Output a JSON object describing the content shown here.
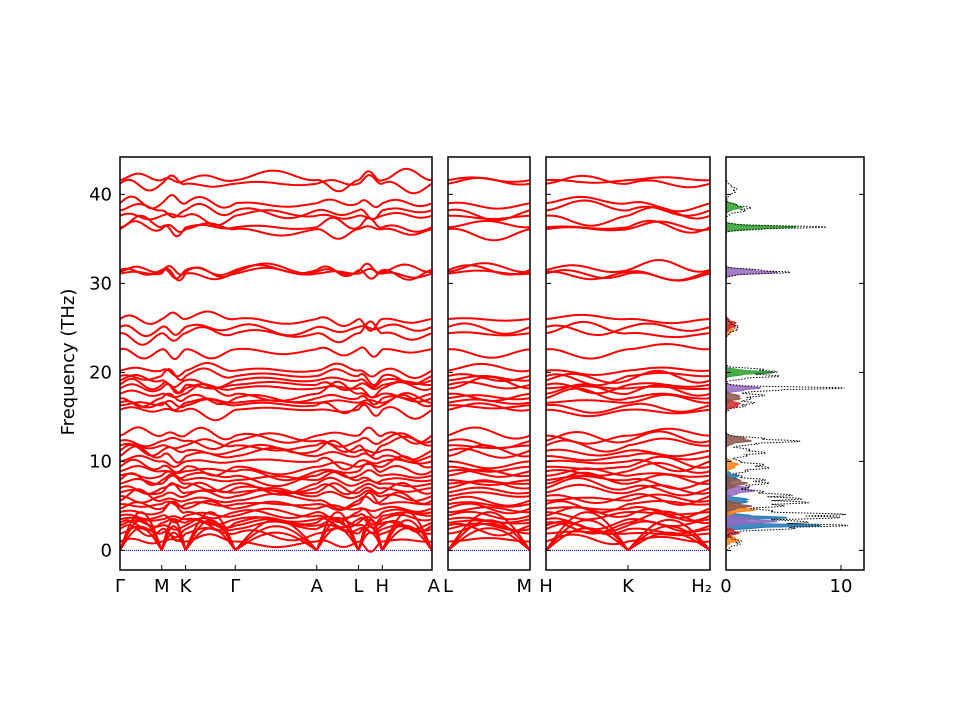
{
  "chart_data": {
    "type": "line",
    "title": "",
    "ylabel": "Frequency (THz)",
    "ylim": [
      -2.2,
      44.2
    ],
    "yticks": [
      0,
      10,
      20,
      30,
      40
    ],
    "line_color": "#ff0000",
    "zero_line_color": "#0000ff",
    "panels": [
      {
        "name": "path-1",
        "xticks": [
          "Γ",
          "M",
          "K",
          "Γ",
          "A",
          "L",
          "H",
          "A"
        ],
        "segments": [
          {
            "from": "Γ",
            "to": "M",
            "len": 0.42
          },
          {
            "from": "M",
            "to": "K",
            "len": 0.24
          },
          {
            "from": "K",
            "to": "Γ",
            "len": 0.5
          },
          {
            "from": "Γ",
            "to": "A",
            "len": 0.82
          },
          {
            "from": "A",
            "to": "L",
            "len": 0.42
          },
          {
            "from": "L",
            "to": "H",
            "len": 0.24
          },
          {
            "from": "H",
            "to": "A",
            "len": 0.5
          }
        ]
      },
      {
        "name": "path-2",
        "xticks": [
          "L",
          "M"
        ],
        "segments": [
          {
            "from": "L",
            "to": "M",
            "len": 1.0
          }
        ]
      },
      {
        "name": "path-3",
        "xticks": [
          "H",
          "K",
          "H₂"
        ],
        "segments": [
          {
            "from": "H",
            "to": "K",
            "len": 1.0
          },
          {
            "from": "K",
            "to": "H₂",
            "len": 1.0
          }
        ]
      }
    ],
    "band_levels_thz": [
      0.0,
      0.0,
      0.0,
      1.0,
      1.9,
      2.4,
      2.8,
      3.1,
      3.5,
      3.9,
      4.3,
      4.7,
      5.2,
      5.6,
      6.1,
      6.5,
      7.0,
      7.5,
      7.9,
      8.4,
      8.9,
      9.4,
      10.0,
      10.6,
      11.2,
      11.8,
      12.3,
      12.9,
      15.8,
      16.3,
      16.6,
      17.1,
      17.6,
      18.2,
      18.6,
      19.1,
      19.6,
      20.2,
      22.6,
      24.4,
      25.1,
      26.0,
      31.1,
      31.3,
      31.5,
      36.1,
      36.3,
      37.6,
      38.2,
      39.0,
      41.2,
      41.6
    ],
    "dos": {
      "xlim": [
        0,
        12.0
      ],
      "xticks": [
        0,
        10
      ],
      "total_peaks": [
        {
          "freq": 0.9,
          "value": 1.5,
          "width": 0.5
        },
        {
          "freq": 2.8,
          "value": 10.6,
          "width": 0.5
        },
        {
          "freq": 3.9,
          "value": 11.5,
          "width": 0.5
        },
        {
          "freq": 5.3,
          "value": 6.5,
          "width": 0.6
        },
        {
          "freq": 6.2,
          "value": 5.2,
          "width": 0.6
        },
        {
          "freq": 7.7,
          "value": 4.0,
          "width": 0.6
        },
        {
          "freq": 9.4,
          "value": 4.0,
          "width": 0.6
        },
        {
          "freq": 11.0,
          "value": 3.5,
          "width": 0.5
        },
        {
          "freq": 12.3,
          "value": 6.5,
          "width": 0.4
        },
        {
          "freq": 16.5,
          "value": 2.5,
          "width": 0.5
        },
        {
          "freq": 17.4,
          "value": 3.3,
          "width": 0.4
        },
        {
          "freq": 18.2,
          "value": 11.0,
          "width": 0.25
        },
        {
          "freq": 19.6,
          "value": 4.6,
          "width": 0.35
        },
        {
          "freq": 20.2,
          "value": 4.7,
          "width": 0.3
        },
        {
          "freq": 25.0,
          "value": 1.2,
          "width": 0.6
        },
        {
          "freq": 31.3,
          "value": 6.0,
          "width": 0.3
        },
        {
          "freq": 36.3,
          "value": 9.0,
          "width": 0.25
        },
        {
          "freq": 38.4,
          "value": 2.3,
          "width": 0.5
        },
        {
          "freq": 40.5,
          "value": 1.0,
          "width": 0.6
        }
      ],
      "partials": [
        {
          "color": "#1f77b4",
          "peaks": [
            {
              "freq": 2.8,
              "value": 8.5,
              "width": 0.3
            },
            {
              "freq": 3.7,
              "value": 5.5,
              "width": 0.3
            },
            {
              "freq": 5.6,
              "value": 2.3,
              "width": 0.4
            },
            {
              "freq": 8.2,
              "value": 1.2,
              "width": 0.5
            }
          ]
        },
        {
          "color": "#ff7f0e",
          "peaks": [
            {
              "freq": 1.2,
              "value": 1.2,
              "width": 0.4
            },
            {
              "freq": 4.6,
              "value": 2.6,
              "width": 0.4
            },
            {
              "freq": 9.6,
              "value": 1.1,
              "width": 0.5
            },
            {
              "freq": 24.8,
              "value": 0.7,
              "width": 0.5
            }
          ]
        },
        {
          "color": "#2ca02c",
          "peaks": [
            {
              "freq": 20.0,
              "value": 4.2,
              "width": 0.3
            },
            {
              "freq": 36.3,
              "value": 6.5,
              "width": 0.25
            },
            {
              "freq": 38.6,
              "value": 1.5,
              "width": 0.4
            }
          ]
        },
        {
          "color": "#d62728",
          "peaks": [
            {
              "freq": 2.0,
              "value": 1.2,
              "width": 0.4
            },
            {
              "freq": 16.4,
              "value": 1.4,
              "width": 0.4
            },
            {
              "freq": 25.4,
              "value": 1.0,
              "width": 0.5
            }
          ]
        },
        {
          "color": "#9467bd",
          "peaks": [
            {
              "freq": 3.3,
              "value": 4.6,
              "width": 0.35
            },
            {
              "freq": 6.8,
              "value": 2.6,
              "width": 0.5
            },
            {
              "freq": 18.2,
              "value": 3.2,
              "width": 0.3
            },
            {
              "freq": 31.3,
              "value": 4.8,
              "width": 0.3
            }
          ]
        },
        {
          "color": "#8c564b",
          "peaks": [
            {
              "freq": 5.0,
              "value": 2.3,
              "width": 0.4
            },
            {
              "freq": 7.6,
              "value": 1.9,
              "width": 0.5
            },
            {
              "freq": 12.4,
              "value": 2.4,
              "width": 0.4
            },
            {
              "freq": 17.2,
              "value": 1.5,
              "width": 0.4
            }
          ]
        }
      ]
    }
  }
}
